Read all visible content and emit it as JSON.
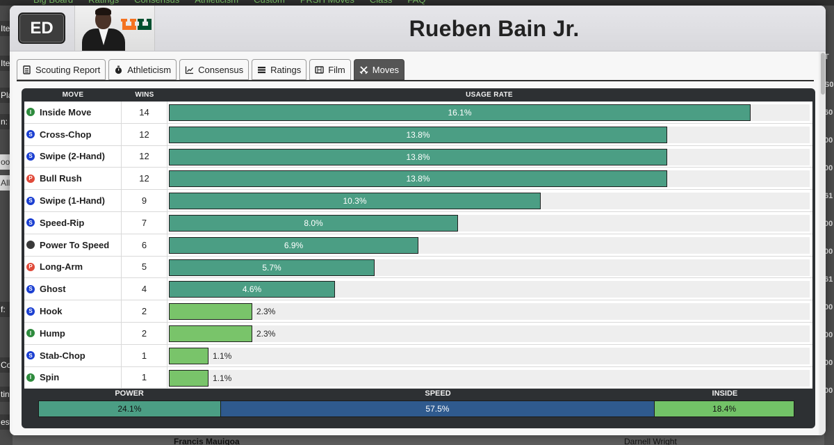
{
  "background": {
    "nav": [
      "Big Board",
      "Ratings",
      "Consensus",
      "Athleticism",
      "Custom",
      "PRSH Moves",
      "Class",
      "FAQ"
    ],
    "left_tabs": [
      "Ite",
      "Ite",
      "Pla",
      "n:",
      "oo",
      "All",
      "f:",
      "Co",
      "tin",
      "es"
    ],
    "right_cells": [
      "T",
      "S0",
      "60",
      "00",
      "00",
      "61",
      "00",
      "00",
      "61",
      "00",
      "00",
      "00",
      "00"
    ],
    "bottom_row": {
      "name": "Francis Mauigoa",
      "other": "Darnell Wright"
    }
  },
  "player": {
    "position": "ED",
    "name": "Rueben Bain Jr."
  },
  "tabs": [
    {
      "label": "Scouting Report",
      "icon": "document-icon",
      "active": false
    },
    {
      "label": "Athleticism",
      "icon": "stopwatch-icon",
      "active": false
    },
    {
      "label": "Consensus",
      "icon": "line-chart-icon",
      "active": false
    },
    {
      "label": "Ratings",
      "icon": "list-bars-icon",
      "active": false
    },
    {
      "label": "Film",
      "icon": "film-icon",
      "active": false
    },
    {
      "label": "Moves",
      "icon": "crossed-swords-icon",
      "active": true
    }
  ],
  "table": {
    "headers": {
      "move": "MOVE",
      "wins": "WINS",
      "usage": "USAGE RATE"
    },
    "rows": [
      {
        "type": "I",
        "move": "Inside Move",
        "wins": "14",
        "usage": 16.1,
        "usage_label": "16.1%"
      },
      {
        "type": "S",
        "move": "Cross-Chop",
        "wins": "12",
        "usage": 13.8,
        "usage_label": "13.8%"
      },
      {
        "type": "S",
        "move": "Swipe (2-Hand)",
        "wins": "12",
        "usage": 13.8,
        "usage_label": "13.8%"
      },
      {
        "type": "P",
        "move": "Bull Rush",
        "wins": "12",
        "usage": 13.8,
        "usage_label": "13.8%"
      },
      {
        "type": "S",
        "move": "Swipe (1-Hand)",
        "wins": "9",
        "usage": 10.3,
        "usage_label": "10.3%"
      },
      {
        "type": "S",
        "move": "Speed-Rip",
        "wins": "7",
        "usage": 8.0,
        "usage_label": "8.0%"
      },
      {
        "type": "",
        "move": "Power To Speed",
        "wins": "6",
        "usage": 6.9,
        "usage_label": "6.9%"
      },
      {
        "type": "P",
        "move": "Long-Arm",
        "wins": "5",
        "usage": 5.7,
        "usage_label": "5.7%"
      },
      {
        "type": "S",
        "move": "Ghost",
        "wins": "4",
        "usage": 4.6,
        "usage_label": "4.6%"
      },
      {
        "type": "S",
        "move": "Hook",
        "wins": "2",
        "usage": 2.3,
        "usage_label": "2.3%"
      },
      {
        "type": "I",
        "move": "Hump",
        "wins": "2",
        "usage": 2.3,
        "usage_label": "2.3%"
      },
      {
        "type": "S",
        "move": "Stab-Chop",
        "wins": "1",
        "usage": 1.1,
        "usage_label": "1.1%"
      },
      {
        "type": "I",
        "move": "Spin",
        "wins": "1",
        "usage": 1.1,
        "usage_label": "1.1%"
      }
    ]
  },
  "summary": [
    {
      "label": "POWER",
      "value": 24.1,
      "value_label": "24.1%",
      "color": "#4b9e84"
    },
    {
      "label": "SPEED",
      "value": 57.5,
      "value_label": "57.5%",
      "color": "#2f5a8e"
    },
    {
      "label": "INSIDE",
      "value": 18.4,
      "value_label": "18.4%",
      "color": "#72c267"
    }
  ],
  "colors": {
    "type_I": "#2e8b3d",
    "type_S": "#1b3fd1",
    "type_P": "#e04a3a",
    "type_none": "#3a3a3a",
    "bar_dark": "#4b9e84",
    "bar_light": "#79c46a"
  }
}
